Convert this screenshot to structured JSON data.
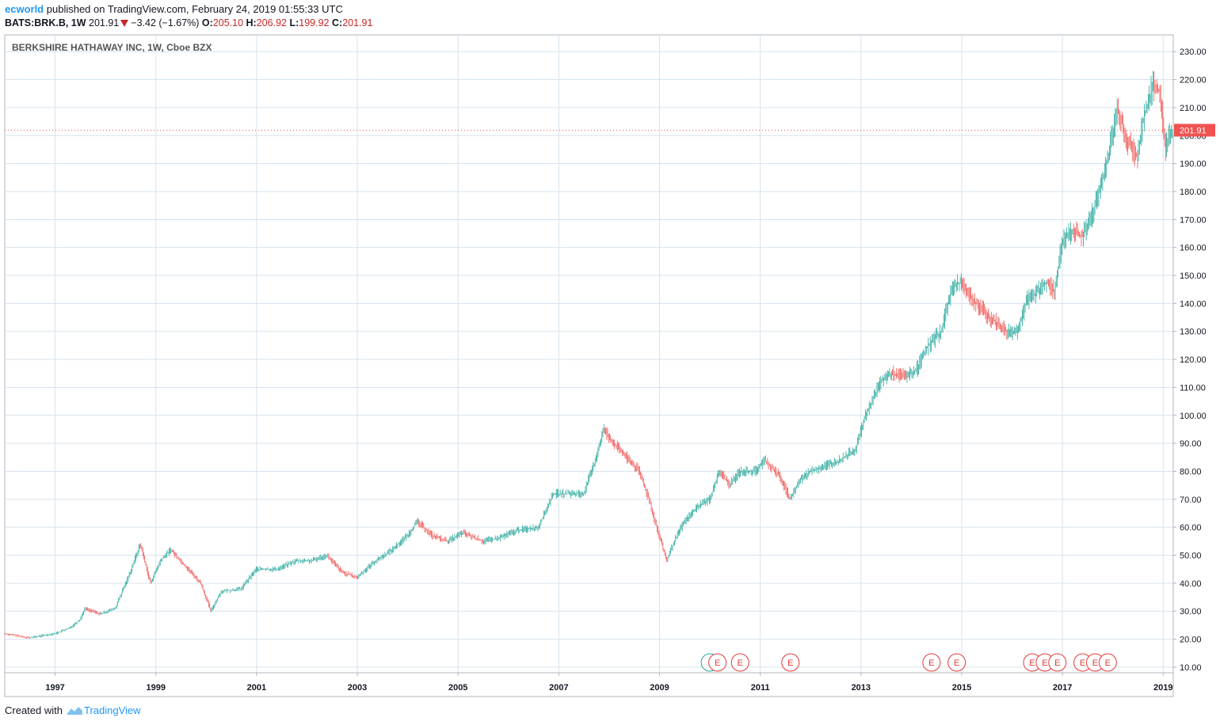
{
  "header": {
    "publisher": "ecworld",
    "published_text": "published on TradingView.com, February 24, 2019 01:55:33 UTC",
    "symbol": "BATS:BRK.B, 1W",
    "last": "201.91",
    "change": "−3.42 (−1.67%)",
    "o_label": "O:",
    "o_value": "205.10",
    "h_label": "H:",
    "h_value": "206.92",
    "l_label": "L:",
    "l_value": "199.92",
    "c_label": "C:",
    "c_value": "201.91"
  },
  "footer": {
    "created_with": "Created with",
    "brand": "TradingView"
  },
  "colors": {
    "up": "#26a69a",
    "down": "#ef5350",
    "price_label": "#f05252",
    "grid": "#d6e3ee",
    "event": "#e23b3b"
  },
  "chart_data": {
    "type": "candlestick",
    "title": "BERKSHIRE HATHAWAY INC, 1W, Cboe BZX",
    "x_tick_labels": [
      "1997",
      "1999",
      "2001",
      "2003",
      "2005",
      "2007",
      "2009",
      "2011",
      "2013",
      "2015",
      "2017",
      "2019"
    ],
    "y_tick_labels": [
      "230.00",
      "220.00",
      "210.00",
      "200.00",
      "190.00",
      "180.00",
      "170.00",
      "160.00",
      "150.00",
      "140.00",
      "130.00",
      "120.00",
      "110.00",
      "100.00",
      "90.00",
      "80.00",
      "70.00",
      "60.00",
      "50.00",
      "40.00",
      "30.00",
      "20.00",
      "10.00"
    ],
    "ylim": [
      8,
      236
    ],
    "xlim": [
      1996.0,
      2019.2
    ],
    "last_price": 201.91,
    "last_price_label": "201.91",
    "event_label": "E",
    "earnings_events": [
      2010.15,
      2010.6,
      2011.6,
      2014.4,
      2014.9,
      2016.4,
      2016.65,
      2016.9,
      2017.4,
      2017.65,
      2017.9
    ],
    "dividend_events": [
      2010.0
    ],
    "close_series": [
      [
        1996.0,
        22
      ],
      [
        1996.5,
        20.5
      ],
      [
        1997.0,
        22
      ],
      [
        1997.3,
        24
      ],
      [
        1997.5,
        27
      ],
      [
        1997.6,
        31
      ],
      [
        1997.9,
        29
      ],
      [
        1998.2,
        31
      ],
      [
        1998.5,
        44
      ],
      [
        1998.7,
        54
      ],
      [
        1998.9,
        40
      ],
      [
        1999.1,
        48
      ],
      [
        1999.3,
        52
      ],
      [
        1999.7,
        44
      ],
      [
        1999.9,
        40
      ],
      [
        2000.1,
        30
      ],
      [
        2000.3,
        37
      ],
      [
        2000.7,
        38
      ],
      [
        2001.0,
        45
      ],
      [
        2001.4,
        45
      ],
      [
        2001.8,
        48
      ],
      [
        2002.1,
        48
      ],
      [
        2002.4,
        50
      ],
      [
        2002.7,
        44
      ],
      [
        2003.0,
        42
      ],
      [
        2003.3,
        47
      ],
      [
        2003.7,
        52
      ],
      [
        2004.0,
        57
      ],
      [
        2004.2,
        62
      ],
      [
        2004.5,
        57
      ],
      [
        2004.8,
        55
      ],
      [
        2005.1,
        58
      ],
      [
        2005.5,
        55
      ],
      [
        2005.8,
        56
      ],
      [
        2006.2,
        59
      ],
      [
        2006.6,
        60
      ],
      [
        2006.9,
        72
      ],
      [
        2007.2,
        72
      ],
      [
        2007.5,
        72
      ],
      [
        2007.7,
        82
      ],
      [
        2007.9,
        95
      ],
      [
        2008.1,
        90
      ],
      [
        2008.3,
        86
      ],
      [
        2008.6,
        80
      ],
      [
        2008.8,
        70
      ],
      [
        2008.95,
        60
      ],
      [
        2009.15,
        48
      ],
      [
        2009.3,
        55
      ],
      [
        2009.5,
        62
      ],
      [
        2009.8,
        68
      ],
      [
        2010.0,
        70
      ],
      [
        2010.2,
        80
      ],
      [
        2010.4,
        75
      ],
      [
        2010.6,
        80
      ],
      [
        2010.9,
        80
      ],
      [
        2011.1,
        84
      ],
      [
        2011.4,
        78
      ],
      [
        2011.6,
        70
      ],
      [
        2011.8,
        77
      ],
      [
        2012.0,
        80
      ],
      [
        2012.3,
        82
      ],
      [
        2012.6,
        84
      ],
      [
        2012.9,
        88
      ],
      [
        2013.1,
        100
      ],
      [
        2013.4,
        112
      ],
      [
        2013.6,
        115
      ],
      [
        2013.9,
        114
      ],
      [
        2014.1,
        116
      ],
      [
        2014.3,
        124
      ],
      [
        2014.6,
        130
      ],
      [
        2014.8,
        145
      ],
      [
        2015.0,
        148
      ],
      [
        2015.2,
        142
      ],
      [
        2015.5,
        136
      ],
      [
        2015.7,
        133
      ],
      [
        2015.9,
        130
      ],
      [
        2016.1,
        130
      ],
      [
        2016.3,
        141
      ],
      [
        2016.5,
        144
      ],
      [
        2016.7,
        148
      ],
      [
        2016.85,
        144
      ],
      [
        2017.0,
        162
      ],
      [
        2017.2,
        166
      ],
      [
        2017.4,
        164
      ],
      [
        2017.6,
        172
      ],
      [
        2017.8,
        184
      ],
      [
        2017.95,
        196
      ],
      [
        2018.1,
        210
      ],
      [
        2018.3,
        198
      ],
      [
        2018.5,
        192
      ],
      [
        2018.6,
        205
      ],
      [
        2018.8,
        218
      ],
      [
        2018.95,
        215
      ],
      [
        2019.05,
        195
      ],
      [
        2019.15,
        201.91
      ]
    ]
  }
}
